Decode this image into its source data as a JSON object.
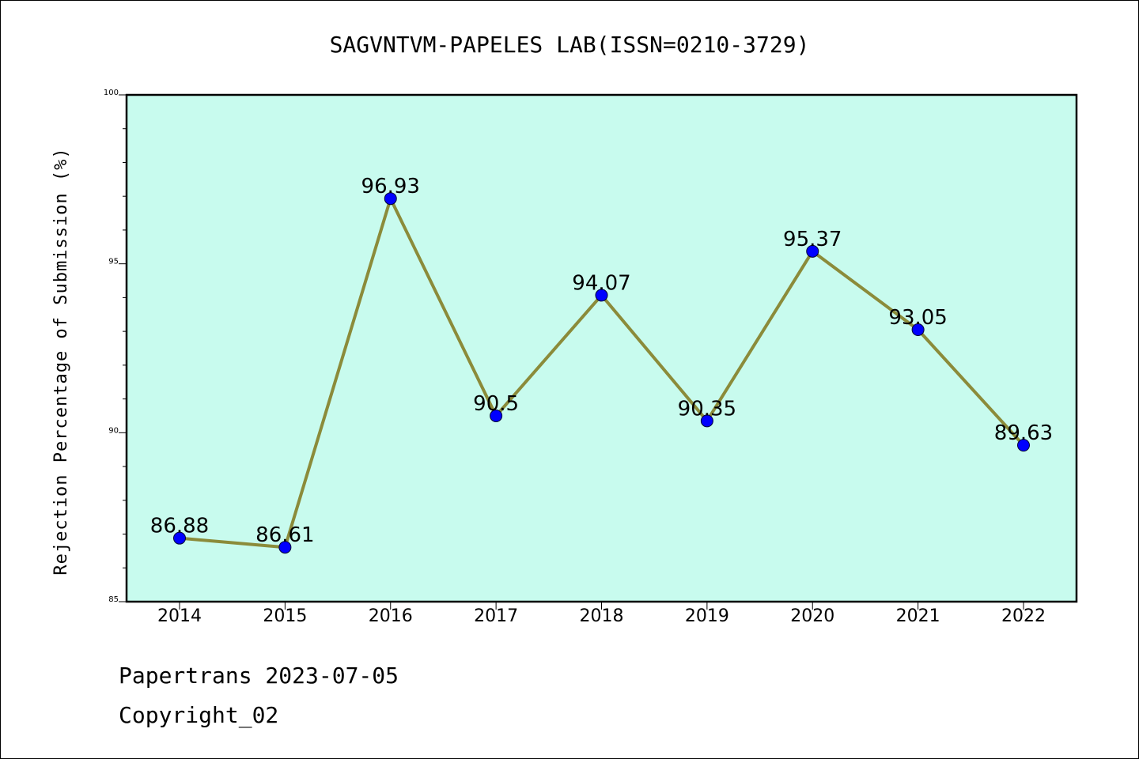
{
  "chart_data": {
    "type": "line",
    "title": "SAGVNTVM-PAPELES LAB(ISSN=0210-3729)",
    "xlabel": "",
    "ylabel": "Rejection Percentage of Submission (%)",
    "categories": [
      "2014",
      "2015",
      "2016",
      "2017",
      "2018",
      "2019",
      "2020",
      "2021",
      "2022"
    ],
    "series": [
      {
        "values": [
          86.88,
          86.61,
          96.93,
          90.5,
          94.07,
          90.35,
          95.37,
          93.05,
          89.63
        ],
        "labels": [
          "86.88",
          "86.61",
          "96.93",
          "90.5",
          "94.07",
          "90.35",
          "95.37",
          "93.05",
          "89.63"
        ]
      }
    ],
    "ylim": [
      85,
      100
    ],
    "yticks": [
      "85",
      "90",
      "95",
      "100"
    ],
    "grid": false,
    "colors": {
      "plot_background": "#c8fbee",
      "line": "#8b8b3a",
      "marker": "#0000ff"
    }
  },
  "footer": {
    "line1": "Papertrans 2023-07-05",
    "line2": "Copyright_02"
  }
}
